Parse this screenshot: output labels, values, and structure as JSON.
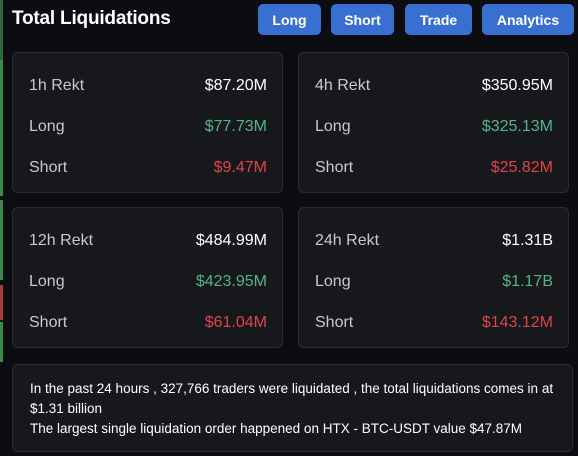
{
  "header": {
    "title": "Total Liquidations",
    "buttons": {
      "long": "Long",
      "short": "Short",
      "trade": "Trade",
      "analytics": "Analytics"
    },
    "button_color": "#3a6fd2"
  },
  "cards": [
    {
      "period": "1h Rekt",
      "total": "$87.20M",
      "long_label": "Long",
      "long": "$77.73M",
      "short_label": "Short",
      "short": "$9.47M"
    },
    {
      "period": "4h Rekt",
      "total": "$350.95M",
      "long_label": "Long",
      "long": "$325.13M",
      "short_label": "Short",
      "short": "$25.82M"
    },
    {
      "period": "12h Rekt",
      "total": "$484.99M",
      "long_label": "Long",
      "long": "$423.95M",
      "short_label": "Short",
      "short": "$61.04M"
    },
    {
      "period": "24h Rekt",
      "total": "$1.31B",
      "long_label": "Long",
      "long": "$1.17B",
      "short_label": "Short",
      "short": "$143.12M"
    }
  ],
  "summary": {
    "line1": "In the past 24 hours , 327,766 traders were liquidated , the total liquidations comes in at $1.31 billion",
    "line2": "The largest single liquidation order happened on HTX - BTC-USDT value $47.87M"
  },
  "colors": {
    "long": "#52b48a",
    "short": "#e0434b",
    "background": "#0c0d10",
    "card": "#17181c"
  }
}
